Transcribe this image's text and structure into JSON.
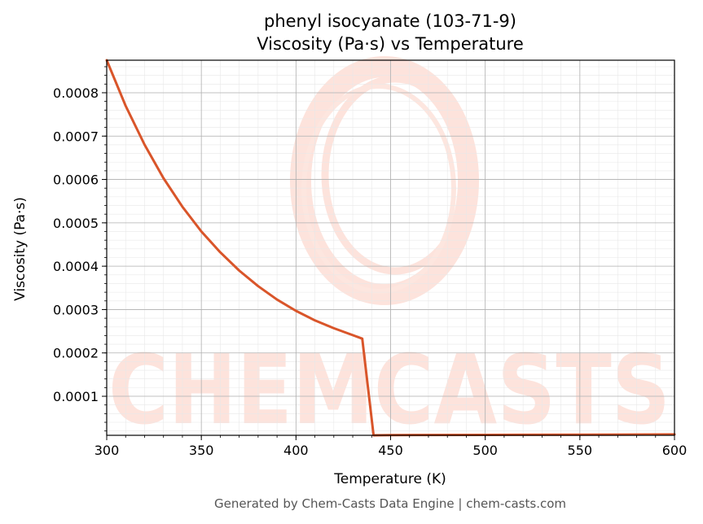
{
  "chart_data": {
    "type": "line",
    "title": "phenyl isocyanate (103-71-9)",
    "subtitle": "Viscosity (Pa·s) vs Temperature",
    "xlabel": "Temperature (K)",
    "ylabel": "Viscosity (Pa·s)",
    "xlim": [
      300,
      600
    ],
    "ylim": [
      1e-05,
      0.000875
    ],
    "xticks": [
      "300",
      "350",
      "400",
      "450",
      "500",
      "550",
      "600"
    ],
    "yticks": [
      "0.0001",
      "0.0002",
      "0.0003",
      "0.0004",
      "0.0005",
      "0.0006",
      "0.0007",
      "0.0008"
    ],
    "grid": true,
    "line_color": "#d9552a",
    "series": [
      {
        "x": [
          300,
          310,
          320,
          330,
          340,
          350,
          360,
          370,
          380,
          390,
          400,
          410,
          420,
          430,
          435,
          441,
          450,
          500,
          550,
          600
        ],
        "values": [
          0.000875,
          0.00077,
          0.00068,
          0.000603,
          0.000537,
          0.00048,
          0.000432,
          0.00039,
          0.000354,
          0.000323,
          0.000297,
          0.000275,
          0.000257,
          0.000241,
          0.000233,
          1e-05,
          1.05e-05,
          1.1e-05,
          1.15e-05,
          1.2e-05
        ]
      }
    ]
  },
  "watermark": "CHEMCASTS",
  "footer": "Generated by Chem-Casts Data Engine | chem-casts.com"
}
